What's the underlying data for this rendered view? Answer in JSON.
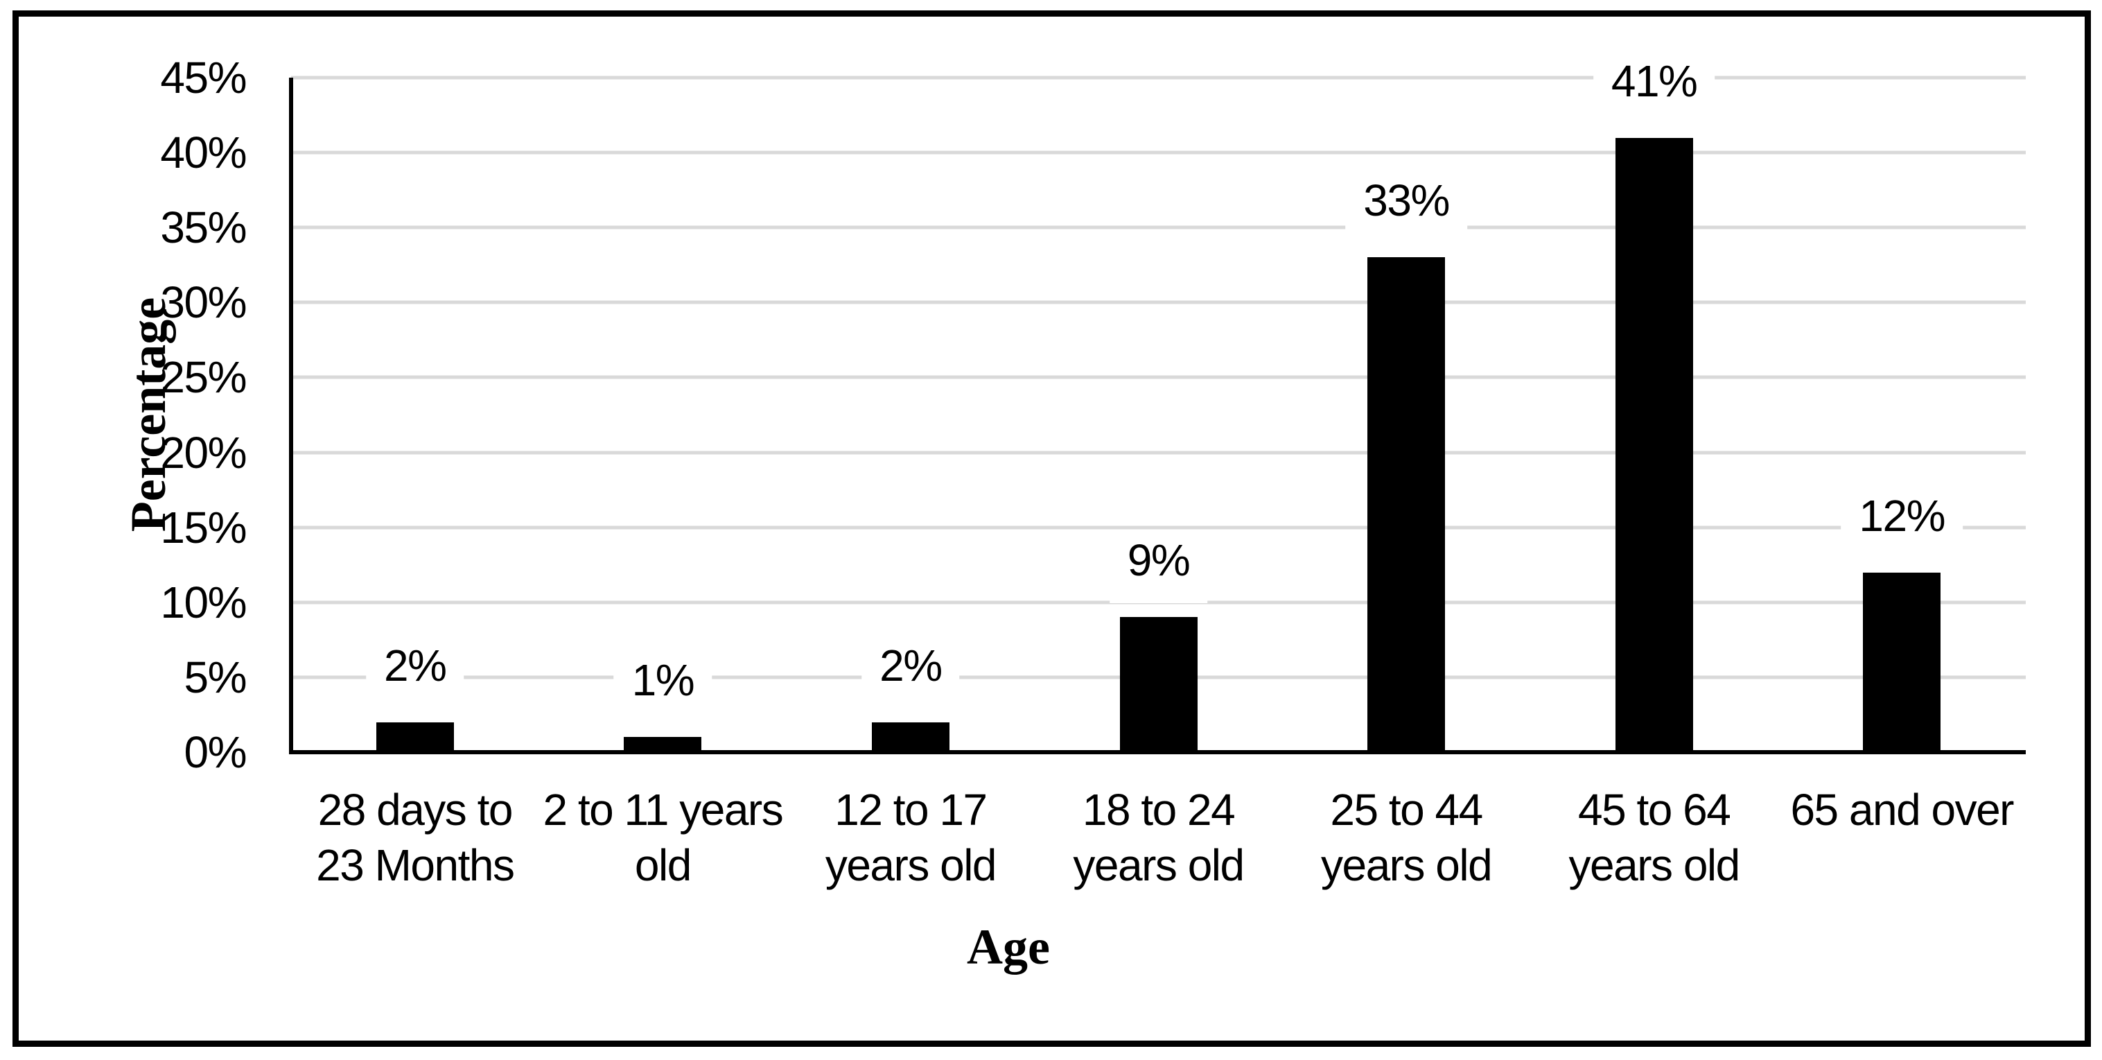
{
  "chart_data": {
    "type": "bar",
    "title": "",
    "xlabel": "Age",
    "ylabel": "Percentage",
    "categories": [
      "28 days to 23 Months",
      "2 to 11 years old",
      "12 to 17 years old",
      "18 to 24 years old",
      "25 to 44 years old",
      "45 to 64 years old",
      "65 and over"
    ],
    "category_lines": [
      [
        "28 days to",
        "23 Months"
      ],
      [
        "2 to 11 years",
        "old"
      ],
      [
        "12 to 17",
        "years old"
      ],
      [
        "18 to 24",
        "years old"
      ],
      [
        "25 to 44",
        "years old"
      ],
      [
        "45 to 64",
        "years old"
      ],
      [
        "65 and over"
      ]
    ],
    "values": [
      2,
      1,
      2,
      9,
      33,
      41,
      12
    ],
    "data_labels": [
      "2%",
      "1%",
      "2%",
      "9%",
      "33%",
      "41%",
      "12%"
    ],
    "y_ticks": [
      "45%",
      "40%",
      "35%",
      "30%",
      "25%",
      "20%",
      "15%",
      "10%",
      "5%",
      "0%"
    ],
    "ylim": [
      0,
      45
    ],
    "y_tick_step": 5,
    "grid": true,
    "legend": false,
    "colors": {
      "bar": "#000000",
      "gridline": "#d9d9d9",
      "axis": "#000000",
      "text": "#000000",
      "background": "#ffffff",
      "border": "#000000"
    }
  }
}
